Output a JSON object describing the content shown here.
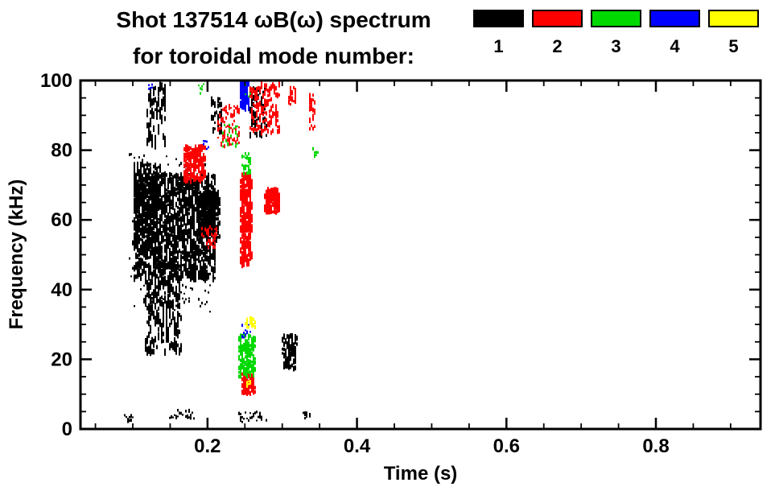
{
  "chart_data": {
    "type": "scatter",
    "title": "Shot 137514 ωB(ω) spectrum",
    "subtitle": "for toroidal mode number:",
    "xlabel": "Time (s)",
    "ylabel": "Frequency (kHz)",
    "xlim": [
      0.03,
      0.94
    ],
    "ylim": [
      0,
      100
    ],
    "xticks": [
      0.2,
      0.4,
      0.6,
      0.8
    ],
    "xtick_labels": [
      "0.2",
      "0.4",
      "0.6",
      "0.8"
    ],
    "yticks": [
      0,
      20,
      40,
      60,
      80,
      100
    ],
    "ytick_labels": [
      "0",
      "20",
      "40",
      "60",
      "80",
      "100"
    ],
    "x_minor_step": 0.05,
    "y_minor_step": 5,
    "grid": false,
    "background": "#ffffff",
    "frame_color": "#000000",
    "legend_position": "top-right",
    "legend": [
      {
        "label": "1",
        "color": "#000000"
      },
      {
        "label": "2",
        "color": "#ff0000"
      },
      {
        "label": "3",
        "color": "#00d900"
      },
      {
        "label": "4",
        "color": "#0000ff"
      },
      {
        "label": "5",
        "color": "#ffff00"
      }
    ],
    "series": [
      {
        "name": "n=1",
        "mode": 1,
        "color": "#000000",
        "clusters": [
          {
            "t": [
              0.118,
              0.143
            ],
            "f": [
              81,
              99
            ],
            "n": 90,
            "ph": [
              3,
              12
            ]
          },
          {
            "t": [
              0.1,
              0.21
            ],
            "f": [
              43,
              73
            ],
            "n": 1500,
            "ph": [
              3,
              10
            ]
          },
          {
            "t": [
              0.1,
              0.135
            ],
            "f": [
              50,
              76
            ],
            "n": 300,
            "ph": [
              3,
              9
            ]
          },
          {
            "t": [
              0.185,
              0.215
            ],
            "f": [
              55,
              68
            ],
            "n": 260,
            "ph": [
              3,
              8
            ]
          },
          {
            "t": [
              0.115,
              0.165
            ],
            "f": [
              22,
              44
            ],
            "n": 220,
            "ph": [
              4,
              12
            ]
          },
          {
            "t": [
              0.095,
              0.205
            ],
            "f": [
              33,
              79
            ],
            "n": 200,
            "ph": [
              2,
              4
            ]
          },
          {
            "t": [
              0.088,
              0.1
            ],
            "f": [
              2,
              4
            ],
            "n": 15,
            "ph": [
              2,
              3
            ]
          },
          {
            "t": [
              0.148,
              0.18
            ],
            "f": [
              3,
              6
            ],
            "n": 25,
            "ph": [
              2,
              4
            ]
          },
          {
            "t": [
              0.24,
              0.278
            ],
            "f": [
              2,
              5
            ],
            "n": 35,
            "ph": [
              2,
              4
            ]
          },
          {
            "t": [
              0.3,
              0.318
            ],
            "f": [
              17,
              27
            ],
            "n": 130,
            "ph": [
              3,
              7
            ]
          },
          {
            "t": [
              0.326,
              0.337
            ],
            "f": [
              3,
              5
            ],
            "n": 12,
            "ph": [
              2,
              3
            ]
          },
          {
            "t": [
              0.256,
              0.278
            ],
            "f": [
              84,
              98
            ],
            "n": 70,
            "ph": [
              3,
              9
            ]
          },
          {
            "t": [
              0.204,
              0.218
            ],
            "f": [
              85,
              95
            ],
            "n": 40,
            "ph": [
              3,
              8
            ]
          }
        ]
      },
      {
        "name": "n=2",
        "mode": 2,
        "color": "#ff0000",
        "clusters": [
          {
            "t": [
              0.168,
              0.196
            ],
            "f": [
              71,
              81
            ],
            "n": 220,
            "ph": [
              3,
              7
            ]
          },
          {
            "t": [
              0.19,
              0.212
            ],
            "f": [
              52,
              58
            ],
            "n": 40,
            "ph": [
              2,
              5
            ]
          },
          {
            "t": [
              0.213,
              0.242
            ],
            "f": [
              81,
              93
            ],
            "n": 80,
            "ph": [
              2,
              6
            ]
          },
          {
            "t": [
              0.256,
              0.296
            ],
            "f": [
              85,
              99
            ],
            "n": 130,
            "ph": [
              3,
              9
            ]
          },
          {
            "t": [
              0.243,
              0.258
            ],
            "f": [
              47,
              73
            ],
            "n": 260,
            "ph": [
              4,
              10
            ]
          },
          {
            "t": [
              0.276,
              0.295
            ],
            "f": [
              62,
              69
            ],
            "n": 160,
            "ph": [
              3,
              7
            ]
          },
          {
            "t": [
              0.308,
              0.318
            ],
            "f": [
              93,
              98
            ],
            "n": 30,
            "ph": [
              3,
              7
            ]
          },
          {
            "t": [
              0.245,
              0.262
            ],
            "f": [
              10,
              16
            ],
            "n": 130,
            "ph": [
              3,
              6
            ]
          },
          {
            "t": [
              0.335,
              0.343
            ],
            "f": [
              86,
              96
            ],
            "n": 30,
            "ph": [
              3,
              8
            ]
          }
        ]
      },
      {
        "name": "n=3",
        "mode": 3,
        "color": "#00d900",
        "clusters": [
          {
            "t": [
              0.241,
              0.263
            ],
            "f": [
              15,
              27
            ],
            "n": 190,
            "ph": [
              3,
              6
            ]
          },
          {
            "t": [
              0.245,
              0.257
            ],
            "f": [
              73,
              79
            ],
            "n": 35,
            "ph": [
              2,
              5
            ]
          },
          {
            "t": [
              0.218,
              0.24
            ],
            "f": [
              80,
              88
            ],
            "n": 25,
            "ph": [
              2,
              4
            ]
          },
          {
            "t": [
              0.245,
              0.256
            ],
            "f": [
              95,
              99
            ],
            "n": 15,
            "ph": [
              2,
              4
            ]
          },
          {
            "t": [
              0.186,
              0.194
            ],
            "f": [
              96,
              99
            ],
            "n": 8,
            "ph": [
              2,
              3
            ]
          },
          {
            "t": [
              0.34,
              0.347
            ],
            "f": [
              78,
              81
            ],
            "n": 8,
            "ph": [
              2,
              4
            ]
          }
        ]
      },
      {
        "name": "n=4",
        "mode": 4,
        "color": "#0000ff",
        "clusters": [
          {
            "t": [
              0.243,
              0.254
            ],
            "f": [
              92,
              100
            ],
            "n": 90,
            "ph": [
              4,
              10
            ]
          },
          {
            "t": [
              0.245,
              0.257
            ],
            "f": [
              26,
              30
            ],
            "n": 15,
            "ph": [
              2,
              4
            ]
          },
          {
            "t": [
              0.12,
              0.128
            ],
            "f": [
              97,
              99
            ],
            "n": 5,
            "ph": [
              2,
              3
            ]
          },
          {
            "t": [
              0.19,
              0.2
            ],
            "f": [
              80,
              83
            ],
            "n": 6,
            "ph": [
              2,
              3
            ]
          }
        ]
      },
      {
        "name": "n=5",
        "mode": 5,
        "color": "#ffff00",
        "clusters": [
          {
            "t": [
              0.25,
              0.263
            ],
            "f": [
              29,
              32
            ],
            "n": 28,
            "ph": [
              2,
              5
            ]
          },
          {
            "t": [
              0.25,
              0.258
            ],
            "f": [
              12,
              14
            ],
            "n": 10,
            "ph": [
              2,
              4
            ]
          }
        ]
      }
    ]
  }
}
